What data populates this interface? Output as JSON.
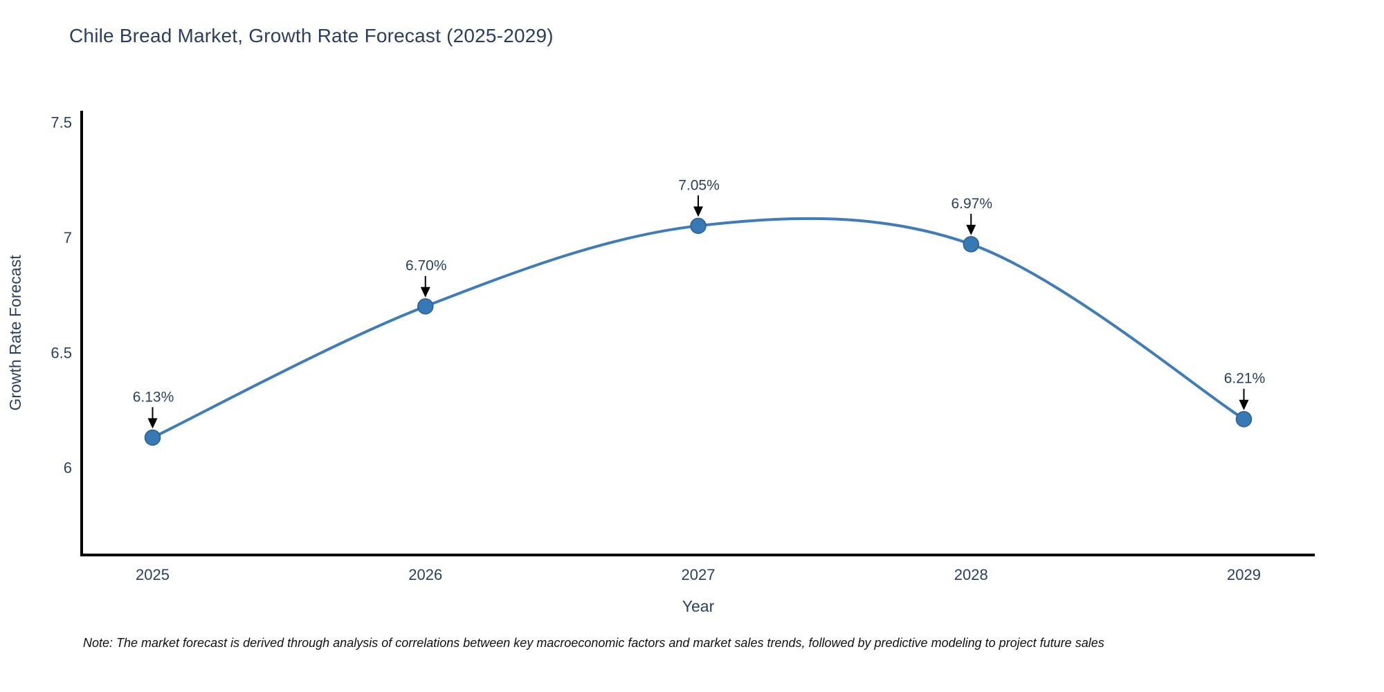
{
  "title": "Chile Bread Market, Growth Rate Forecast (2025-2029)",
  "note": "Note: The market forecast is derived through analysis of correlations between key macroeconomic factors and market sales trends, followed by predictive modeling to project future sales",
  "chart_data": {
    "type": "line",
    "title": "Chile Bread Market, Growth Rate Forecast (2025-2029)",
    "x": [
      2025,
      2026,
      2027,
      2028,
      2029
    ],
    "series": [
      {
        "name": "Growth Rate Forecast",
        "values": [
          6.13,
          6.7,
          7.05,
          6.97,
          6.21
        ]
      }
    ],
    "point_labels": [
      "6.13%",
      "6.70%",
      "7.05%",
      "6.97%",
      "6.21%"
    ],
    "xlabel": "Year",
    "ylabel": "Growth Rate Forecast",
    "yticks": [
      6,
      6.5,
      7,
      7.5
    ],
    "xticks": [
      2025,
      2026,
      2027,
      2028,
      2029
    ],
    "ylim": [
      5.62,
      7.55
    ],
    "xlim": [
      2024.74,
      2029.26
    ],
    "grid": false,
    "legend": "none",
    "line_shape": "spline",
    "colors": {
      "line": "#3f7db8",
      "marker": "#3679b5",
      "marker_stroke": "#2d5f8f",
      "axis": "#000000",
      "tick_text": "#2a3f5f",
      "annotation_text": "#2a3f5f",
      "arrow": "#000000",
      "note_text": "#111111",
      "title_text": "#2a3f5f",
      "background": "#ffffff"
    }
  }
}
